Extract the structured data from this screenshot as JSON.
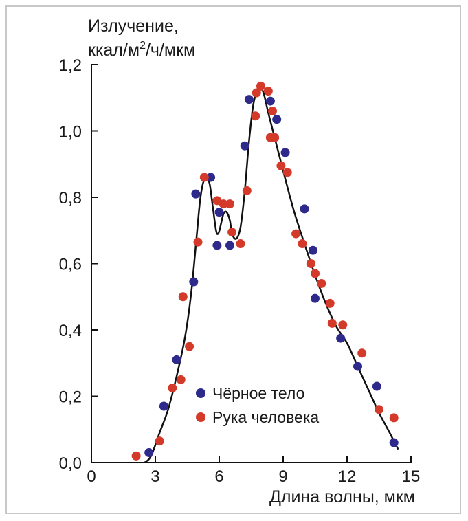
{
  "chart_data": {
    "type": "scatter",
    "ylabel_line1": "Излучение,",
    "ylabel_line2_a": "ккал/м",
    "ylabel_line2_sup": "2",
    "ylabel_line2_b": "/ч/мкм",
    "xlabel": "Длина волны, мкм",
    "xlim": [
      0,
      15
    ],
    "ylim": [
      0,
      1.2
    ],
    "x_ticks": [
      "0",
      "3",
      "6",
      "9",
      "12",
      "15"
    ],
    "y_ticks": [
      "0,0",
      "0,2",
      "0,4",
      "0,6",
      "0,8",
      "1,0",
      "1,2"
    ],
    "legend_position": "bottom-center",
    "grid": false,
    "series": [
      {
        "name": "Чёрное тело",
        "color": "#2e2a8c",
        "marker": "circle",
        "points": [
          [
            2.7,
            0.03
          ],
          [
            3.4,
            0.17
          ],
          [
            4.0,
            0.31
          ],
          [
            4.8,
            0.545
          ],
          [
            4.9,
            0.81
          ],
          [
            5.6,
            0.86
          ],
          [
            5.9,
            0.655
          ],
          [
            6.0,
            0.755
          ],
          [
            6.5,
            0.655
          ],
          [
            7.2,
            0.955
          ],
          [
            7.4,
            1.095
          ],
          [
            8.4,
            1.09
          ],
          [
            8.7,
            1.035
          ],
          [
            9.1,
            0.935
          ],
          [
            10.0,
            0.765
          ],
          [
            10.4,
            0.64
          ],
          [
            10.5,
            0.495
          ],
          [
            11.7,
            0.375
          ],
          [
            12.5,
            0.29
          ],
          [
            13.4,
            0.23
          ],
          [
            14.2,
            0.06
          ]
        ]
      },
      {
        "name": "Рука человека",
        "color": "#d43a2a",
        "marker": "circle",
        "points": [
          [
            2.1,
            0.02
          ],
          [
            3.2,
            0.065
          ],
          [
            3.8,
            0.225
          ],
          [
            4.2,
            0.25
          ],
          [
            4.3,
            0.5
          ],
          [
            4.6,
            0.35
          ],
          [
            5.0,
            0.665
          ],
          [
            5.3,
            0.86
          ],
          [
            5.9,
            0.79
          ],
          [
            6.2,
            0.78
          ],
          [
            6.5,
            0.78
          ],
          [
            6.6,
            0.695
          ],
          [
            7.0,
            0.66
          ],
          [
            7.3,
            0.82
          ],
          [
            7.7,
            1.045
          ],
          [
            7.75,
            1.115
          ],
          [
            7.95,
            1.135
          ],
          [
            8.3,
            1.12
          ],
          [
            8.4,
            0.98
          ],
          [
            8.5,
            1.06
          ],
          [
            8.6,
            0.98
          ],
          [
            8.9,
            0.895
          ],
          [
            9.2,
            0.875
          ],
          [
            9.6,
            0.69
          ],
          [
            9.9,
            0.66
          ],
          [
            10.3,
            0.6
          ],
          [
            10.5,
            0.57
          ],
          [
            10.8,
            0.54
          ],
          [
            11.2,
            0.48
          ],
          [
            11.3,
            0.42
          ],
          [
            11.8,
            0.415
          ],
          [
            12.7,
            0.33
          ],
          [
            13.5,
            0.16
          ],
          [
            14.2,
            0.135
          ]
        ]
      }
    ],
    "curve": [
      [
        2.5,
        0.0
      ],
      [
        2.8,
        0.02
      ],
      [
        3.2,
        0.09
      ],
      [
        3.6,
        0.16
      ],
      [
        4.0,
        0.26
      ],
      [
        4.4,
        0.38
      ],
      [
        4.7,
        0.52
      ],
      [
        4.95,
        0.69
      ],
      [
        5.1,
        0.79
      ],
      [
        5.25,
        0.845
      ],
      [
        5.4,
        0.855
      ],
      [
        5.55,
        0.84
      ],
      [
        5.7,
        0.77
      ],
      [
        5.85,
        0.7
      ],
      [
        5.95,
        0.69
      ],
      [
        6.05,
        0.71
      ],
      [
        6.2,
        0.75
      ],
      [
        6.35,
        0.755
      ],
      [
        6.5,
        0.73
      ],
      [
        6.6,
        0.69
      ],
      [
        6.8,
        0.675
      ],
      [
        7.0,
        0.71
      ],
      [
        7.2,
        0.82
      ],
      [
        7.4,
        0.97
      ],
      [
        7.6,
        1.08
      ],
      [
        7.8,
        1.125
      ],
      [
        7.95,
        1.13
      ],
      [
        8.1,
        1.11
      ],
      [
        8.3,
        1.055
      ],
      [
        8.6,
        0.98
      ],
      [
        9.0,
        0.88
      ],
      [
        9.5,
        0.76
      ],
      [
        10.0,
        0.66
      ],
      [
        10.5,
        0.565
      ],
      [
        11.0,
        0.48
      ],
      [
        11.5,
        0.41
      ],
      [
        12.0,
        0.36
      ],
      [
        12.5,
        0.29
      ],
      [
        13.0,
        0.22
      ],
      [
        13.5,
        0.15
      ],
      [
        14.0,
        0.09
      ],
      [
        14.4,
        0.04
      ]
    ]
  }
}
